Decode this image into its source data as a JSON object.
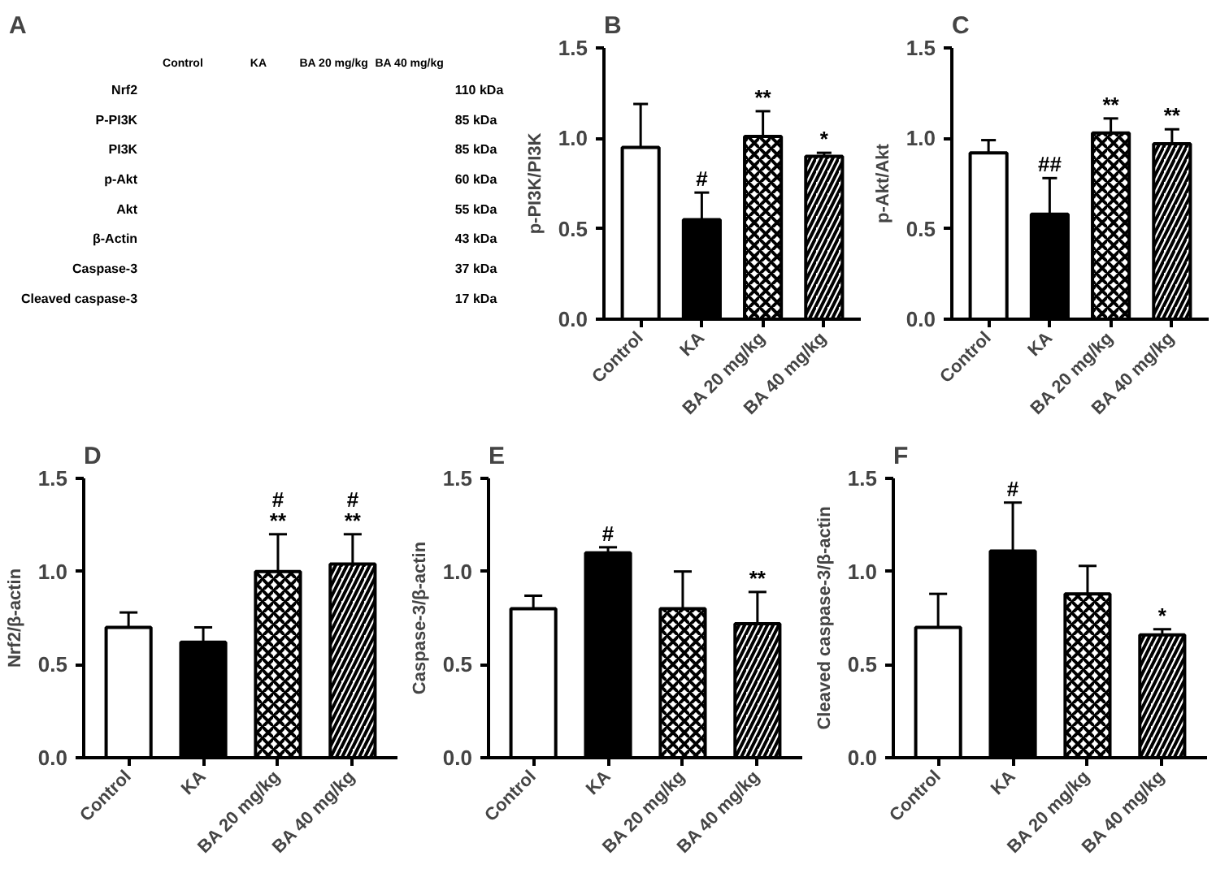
{
  "chart_data": [
    {
      "type": "other",
      "title": "A",
      "categories": [
        "Control",
        "KA",
        "BA 20 mg/kg",
        "BA 40 mg/kg"
      ],
      "y_categories": [
        "Nrf2",
        "P-PI3K",
        "PI3K",
        "p-Akt",
        "Akt",
        "β-Actin",
        "Caspase-3",
        "Cleaved caspase-3"
      ],
      "y2_categories": [
        "110 kDa",
        "85 kDa",
        "85 kDa",
        "60 kDa",
        "55 kDa",
        "43 kDa",
        "37 kDa",
        "17 kDa"
      ]
    },
    {
      "type": "bar",
      "title": "B",
      "ylabel": "p-PI3K/PI3K",
      "categories": [
        "Control",
        "KA",
        "BA 20 mg/kg",
        "BA 40 mg/kg"
      ],
      "values": [
        0.95,
        0.55,
        1.01,
        0.9
      ],
      "errors": [
        [
          0.95,
          1.19
        ],
        [
          0.55,
          0.7
        ],
        [
          1.01,
          1.15
        ],
        [
          0.9,
          0.92
        ]
      ],
      "colors": [
        "#ffffff",
        "#000000",
        "#ffffff",
        "#ffffff"
      ],
      "ylim": [
        0,
        1.5
      ],
      "yticks": [
        {
          "value": 0,
          "label": "0.0"
        },
        {
          "value": 0.5,
          "label": "0.5"
        },
        {
          "value": 1.0,
          "label": "1.0"
        },
        {
          "value": 1.5,
          "label": "1.5"
        }
      ],
      "annotations": [
        {
          "text": "#",
          "x": "KA",
          "y": 0.7
        },
        {
          "text": "**",
          "x": "BA 20 mg/kg",
          "y": 1.15
        },
        {
          "text": "*",
          "x": "BA 40 mg/kg",
          "y": 0.92
        }
      ]
    },
    {
      "type": "bar",
      "title": "C",
      "ylabel": "p-Akt/Akt",
      "categories": [
        "Control",
        "KA",
        "BA 20 mg/kg",
        "BA 40 mg/kg"
      ],
      "values": [
        0.92,
        0.58,
        1.03,
        0.97
      ],
      "errors": [
        [
          0.92,
          0.99
        ],
        [
          0.58,
          0.78
        ],
        [
          1.03,
          1.11
        ],
        [
          0.97,
          1.05
        ]
      ],
      "colors": [
        "#ffffff",
        "#000000",
        "#ffffff",
        "#ffffff"
      ],
      "ylim": [
        0,
        1.5
      ],
      "yticks": [
        {
          "value": 0,
          "label": "0.0"
        },
        {
          "value": 0.5,
          "label": "0.5"
        },
        {
          "value": 1.0,
          "label": "1.0"
        },
        {
          "value": 1.5,
          "label": "1.5"
        }
      ],
      "annotations": [
        {
          "text": "##",
          "x": "KA",
          "y": 0.78
        },
        {
          "text": "**",
          "x": "BA 20 mg/kg",
          "y": 1.11
        },
        {
          "text": "**",
          "x": "BA 40 mg/kg",
          "y": 1.05
        }
      ]
    },
    {
      "type": "bar",
      "title": "D",
      "ylabel": "Nrf2/β-actin",
      "categories": [
        "Control",
        "KA",
        "BA 20 mg/kg",
        "BA 40 mg/kg"
      ],
      "values": [
        0.7,
        0.62,
        1.0,
        1.04
      ],
      "errors": [
        [
          0.7,
          0.78
        ],
        [
          0.62,
          0.7
        ],
        [
          1.0,
          1.2
        ],
        [
          1.04,
          1.2
        ]
      ],
      "colors": [
        "#ffffff",
        "#000000",
        "#ffffff",
        "#ffffff"
      ],
      "ylim": [
        0,
        1.5
      ],
      "yticks": [
        {
          "value": 0,
          "label": "0.0"
        },
        {
          "value": 0.5,
          "label": "0.5"
        },
        {
          "value": 1.0,
          "label": "1.0"
        },
        {
          "value": 1.5,
          "label": "1.5"
        }
      ],
      "annotations": [
        {
          "text": "**",
          "x": "BA 20 mg/kg",
          "y": 1.2
        },
        {
          "text": "#",
          "x": "BA 20 mg/kg",
          "y": 1.2
        },
        {
          "text": "**",
          "x": "BA 40 mg/kg",
          "y": 1.2
        },
        {
          "text": "#",
          "x": "BA 40 mg/kg",
          "y": 1.2
        }
      ]
    },
    {
      "type": "bar",
      "title": "E",
      "ylabel": "Caspase-3/β-actin",
      "categories": [
        "Control",
        "KA",
        "BA 20 mg/kg",
        "BA 40 mg/kg"
      ],
      "values": [
        0.8,
        1.1,
        0.8,
        0.72
      ],
      "errors": [
        [
          0.8,
          0.87
        ],
        [
          1.1,
          1.13
        ],
        [
          0.8,
          1.0
        ],
        [
          0.72,
          0.89
        ]
      ],
      "colors": [
        "#ffffff",
        "#000000",
        "#ffffff",
        "#ffffff"
      ],
      "ylim": [
        0,
        1.5
      ],
      "yticks": [
        {
          "value": 0,
          "label": "0.0"
        },
        {
          "value": 0.5,
          "label": "0.5"
        },
        {
          "value": 1.0,
          "label": "1.0"
        },
        {
          "value": 1.5,
          "label": "1.5"
        }
      ],
      "annotations": [
        {
          "text": "#",
          "x": "KA",
          "y": 1.13
        },
        {
          "text": "**",
          "x": "BA 40 mg/kg",
          "y": 0.89
        }
      ]
    },
    {
      "type": "bar",
      "title": "F",
      "ylabel": "Cleaved caspase-3/β-actin",
      "categories": [
        "Control",
        "KA",
        "BA 20 mg/kg",
        "BA 40 mg/kg"
      ],
      "values": [
        0.7,
        1.11,
        0.88,
        0.66
      ],
      "errors": [
        [
          0.7,
          0.88
        ],
        [
          1.11,
          1.37
        ],
        [
          0.88,
          1.03
        ],
        [
          0.66,
          0.69
        ]
      ],
      "colors": [
        "#ffffff",
        "#000000",
        "#ffffff",
        "#ffffff"
      ],
      "ylim": [
        0,
        1.5
      ],
      "yticks": [
        {
          "value": 0,
          "label": "0.0"
        },
        {
          "value": 0.5,
          "label": "0.5"
        },
        {
          "value": 1.0,
          "label": "1.0"
        },
        {
          "value": 1.5,
          "label": "1.5"
        }
      ],
      "annotations": [
        {
          "text": "#",
          "x": "KA",
          "y": 1.37
        },
        {
          "text": "*",
          "x": "BA 40 mg/kg",
          "y": 0.69
        }
      ]
    }
  ]
}
